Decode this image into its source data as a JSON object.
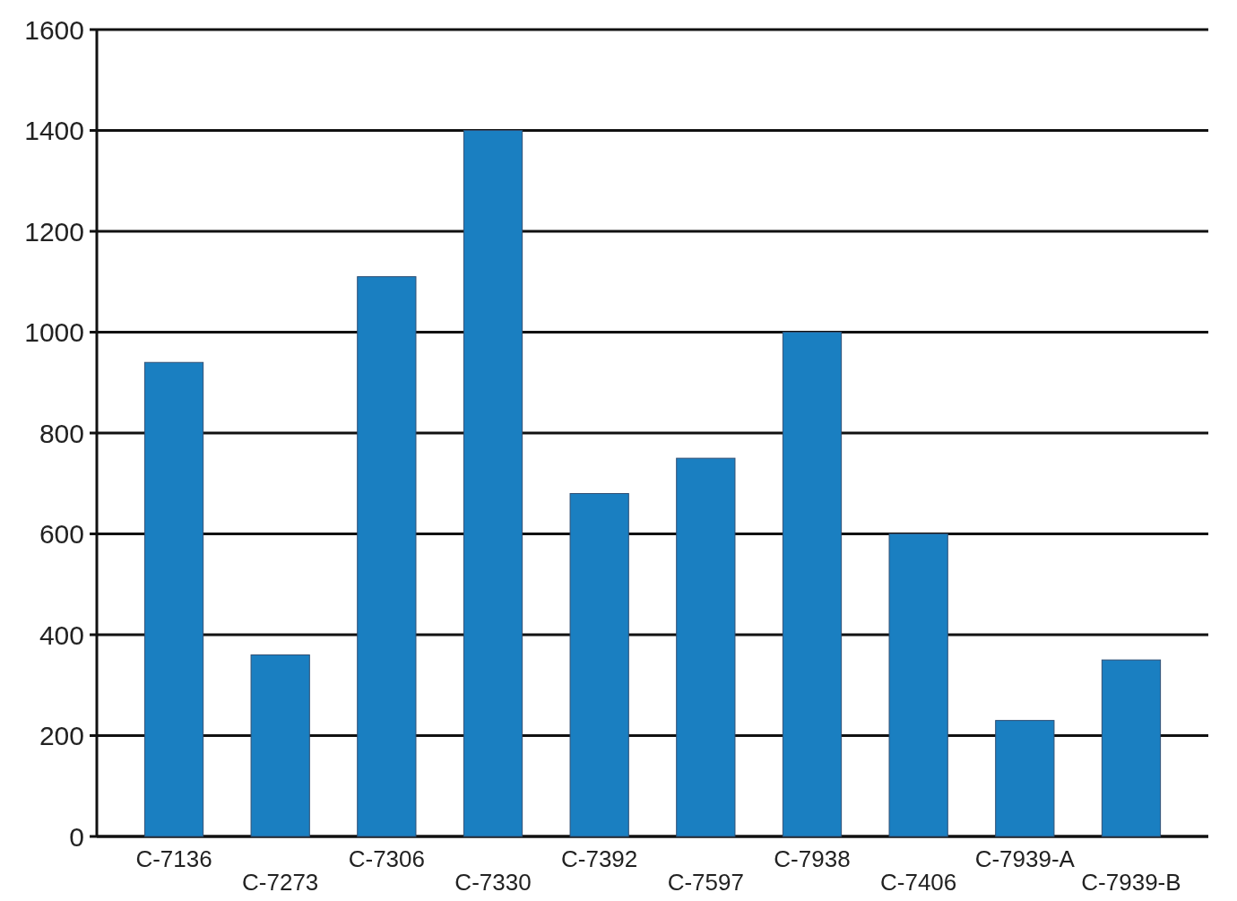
{
  "chart_data": {
    "type": "bar",
    "categories": [
      "C-7136",
      "C-7273",
      "C-7306",
      "C-7330",
      "C-7392",
      "C-7597",
      "C-7938",
      "C-7406",
      "C-7939-A",
      "C-7939-B"
    ],
    "values": [
      940,
      360,
      1110,
      1400,
      680,
      750,
      1000,
      600,
      230,
      350
    ],
    "color": "#1a7fc1",
    "ylim": [
      0,
      1600
    ],
    "yticks": [
      0,
      200,
      400,
      600,
      800,
      1000,
      1200,
      1400,
      1600
    ],
    "grid": "y"
  }
}
